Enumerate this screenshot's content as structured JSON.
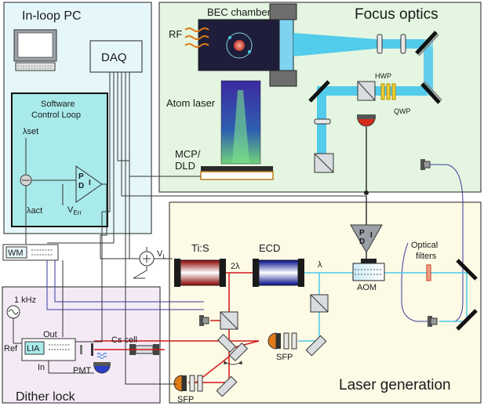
{
  "regions": {
    "in_loop_pc": "In-loop PC",
    "focus_optics": "Focus optics",
    "laser_generation": "Laser generation",
    "dither_lock": "Dither lock"
  },
  "software_loop": {
    "line1": "Software",
    "line2": "Control Loop"
  },
  "labels": {
    "daq": "DAQ",
    "bec_chamber": "BEC chamber",
    "rf": "RF",
    "atom_laser": "Atom laser",
    "mcp_line1": "MCP/",
    "mcp_line2": "DLD",
    "hwp": "HWP",
    "qwp": "QWP",
    "lambda_set": "λset",
    "lambda_act": "λact",
    "v_err": "V",
    "v_err_sub": "Err",
    "v_l": "V",
    "v_l_sub": "L",
    "wm": "WM",
    "tis": "Ti:S",
    "two_lambda": "2λ",
    "ecd": "ECD",
    "lambda": "λ",
    "aom": "AOM",
    "optical_filters_line1": "Optical",
    "optical_filters_line2": "filters",
    "one_khz": "1 kHz",
    "out": "Out",
    "lia": "LIA",
    "ref": "Ref",
    "in": "In",
    "cs_cell": "Cs cell",
    "pmt": "PMT",
    "sfp": "SFP",
    "sfp2": "SFP",
    "pid_p": "P",
    "pid_d": "D",
    "pid_i": "I",
    "pid2_p": "P",
    "pid2_d": "D",
    "pid2_i": "I"
  },
  "colors": {
    "pc_bg": "#e6f7fb",
    "focus_bg": "#e4f6e1",
    "laser_bg": "#fdfae6",
    "dither_bg": "#f4eaf6",
    "software_bg": "#a8ebea",
    "beam_blue": "#4cc9ec",
    "beam_red": "#d01818",
    "wire_blue": "#3a3a9e"
  }
}
